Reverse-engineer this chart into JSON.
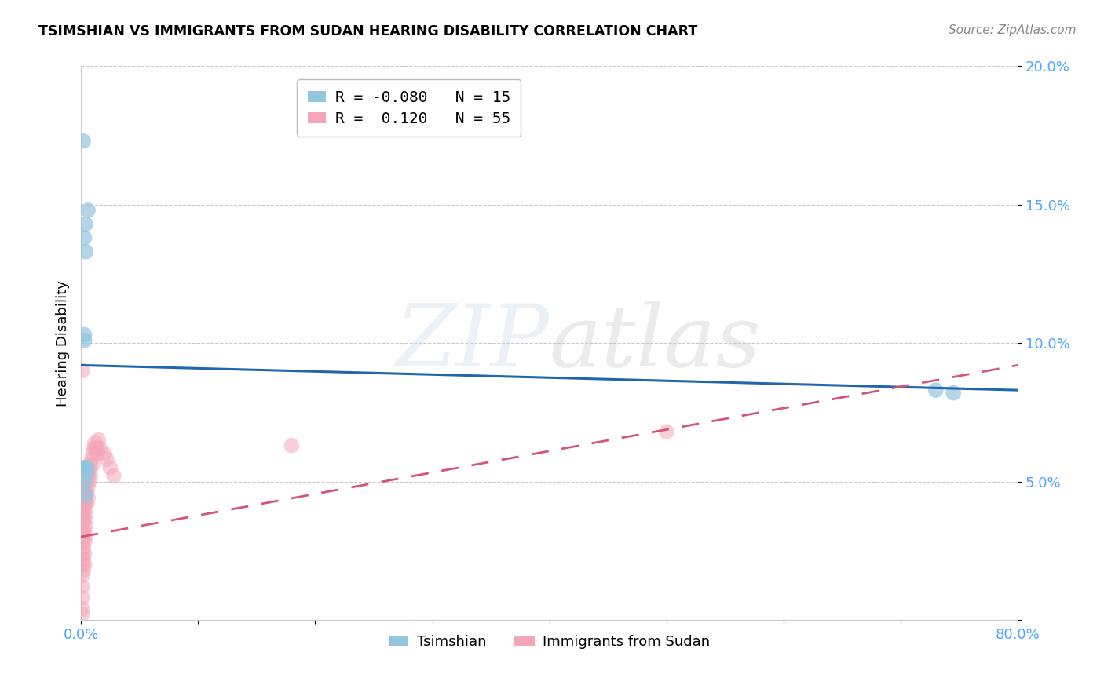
{
  "title": "TSIMSHIAN VS IMMIGRANTS FROM SUDAN HEARING DISABILITY CORRELATION CHART",
  "source": "Source: ZipAtlas.com",
  "ylabel": "Hearing Disability",
  "xlim": [
    0,
    0.8
  ],
  "ylim": [
    0,
    0.2
  ],
  "xticks": [
    0.0,
    0.1,
    0.2,
    0.3,
    0.4,
    0.5,
    0.6,
    0.7,
    0.8
  ],
  "xticklabels": [
    "0.0%",
    "",
    "",
    "",
    "",
    "",
    "",
    "",
    "80.0%"
  ],
  "yticks": [
    0.0,
    0.05,
    0.1,
    0.15,
    0.2
  ],
  "yticklabels": [
    "",
    "5.0%",
    "10.0%",
    "15.0%",
    "20.0%"
  ],
  "blue_color": "#92c5de",
  "pink_color": "#f4a6b8",
  "trendline_blue": "#2166ac",
  "trendline_pink": "#d6537a",
  "legend_R_blue": "-0.080",
  "legend_N_blue": "15",
  "legend_R_pink": " 0.120",
  "legend_N_pink": "55",
  "blue_points_x": [
    0.002,
    0.003,
    0.004,
    0.004,
    0.006,
    0.003,
    0.003,
    0.004,
    0.005,
    0.73,
    0.745,
    0.002,
    0.003,
    0.004,
    0.005
  ],
  "blue_points_y": [
    0.173,
    0.138,
    0.133,
    0.143,
    0.148,
    0.103,
    0.101,
    0.055,
    0.055,
    0.083,
    0.082,
    0.055,
    0.05,
    0.045,
    0.053
  ],
  "pink_points_x": [
    0.001,
    0.001,
    0.001,
    0.001,
    0.001,
    0.001,
    0.001,
    0.001,
    0.001,
    0.001,
    0.002,
    0.002,
    0.002,
    0.002,
    0.002,
    0.002,
    0.002,
    0.003,
    0.003,
    0.003,
    0.003,
    0.003,
    0.003,
    0.003,
    0.004,
    0.004,
    0.004,
    0.004,
    0.004,
    0.005,
    0.005,
    0.005,
    0.006,
    0.006,
    0.006,
    0.007,
    0.007,
    0.008,
    0.008,
    0.009,
    0.01,
    0.01,
    0.011,
    0.012,
    0.013,
    0.014,
    0.015,
    0.016,
    0.02,
    0.022,
    0.025,
    0.028,
    0.18,
    0.5,
    0.001
  ],
  "pink_points_y": [
    0.09,
    0.038,
    0.032,
    0.028,
    0.024,
    0.02,
    0.016,
    0.012,
    0.008,
    0.004,
    0.042,
    0.038,
    0.035,
    0.03,
    0.026,
    0.022,
    0.018,
    0.044,
    0.04,
    0.036,
    0.032,
    0.028,
    0.024,
    0.02,
    0.046,
    0.042,
    0.038,
    0.034,
    0.03,
    0.05,
    0.046,
    0.042,
    0.052,
    0.048,
    0.044,
    0.054,
    0.05,
    0.056,
    0.052,
    0.058,
    0.06,
    0.056,
    0.062,
    0.064,
    0.062,
    0.06,
    0.065,
    0.062,
    0.06,
    0.058,
    0.055,
    0.052,
    0.063,
    0.068,
    0.002
  ],
  "blue_trendline_x": [
    0.0,
    0.8
  ],
  "blue_trendline_y": [
    0.092,
    0.083
  ],
  "pink_trendline_x": [
    0.0,
    0.8
  ],
  "pink_trendline_y": [
    0.03,
    0.092
  ],
  "watermark_line1": "ZIP",
  "watermark_line2": "atlas",
  "background_color": "#ffffff",
  "grid_color": "#bbbbbb"
}
